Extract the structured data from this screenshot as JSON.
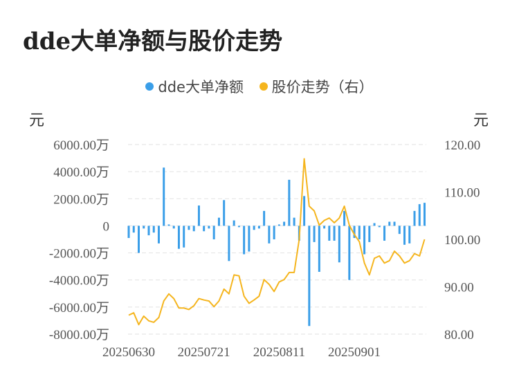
{
  "title": "dde大单净额与股价走势",
  "legend": [
    {
      "name": "dde大单净额",
      "color": "#3a9ee8"
    },
    {
      "name": "股价走势（右）",
      "color": "#f5b51e"
    }
  ],
  "y_left_unit": "元",
  "y_right_unit": "元",
  "chart_data": {
    "type": "bar+line",
    "title": "dde大单净额与股价走势",
    "x_tick_labels": [
      "20250630",
      "20250721",
      "20250811",
      "20250901"
    ],
    "y_left_tick_labels": [
      "6000.00万",
      "4000.00万",
      "2000.00万",
      "0",
      "-2000.00万",
      "-4000.00万",
      "-6000.00万",
      "-8000.00万"
    ],
    "y_right_tick_labels": [
      "120.00",
      "110.00",
      "100.00",
      "90.00",
      "80.00"
    ],
    "y_left_range": [
      -8000,
      6000
    ],
    "y_right_range": [
      80,
      120
    ],
    "grid": true,
    "legend_position": "top",
    "series": [
      {
        "name": "dde大单净额",
        "type": "bar",
        "axis": "left",
        "unit": "万",
        "values": [
          -900,
          -500,
          -2000,
          -200,
          -700,
          -500,
          -1300,
          4300,
          100,
          -200,
          -1700,
          -1600,
          -300,
          -400,
          1500,
          -400,
          -200,
          -1000,
          600,
          1900,
          -2600,
          400,
          -100,
          -2100,
          -1900,
          -300,
          -200,
          1100,
          -1300,
          -1000,
          100,
          300,
          3400,
          600,
          -1100,
          2200,
          -7400,
          -1200,
          -3400,
          -200,
          -1100,
          -1100,
          -2700,
          1100,
          -4000,
          -900,
          -1000,
          -2100,
          -1200,
          200,
          -100,
          -1100,
          300,
          300,
          -600,
          -1400,
          -1300,
          1100,
          1600,
          1700
        ]
      },
      {
        "name": "股价走势（右）",
        "type": "line",
        "axis": "right",
        "values": [
          84.0,
          84.5,
          82.0,
          83.8,
          82.8,
          82.5,
          83.5,
          87.0,
          88.5,
          87.5,
          85.5,
          85.5,
          85.2,
          86.0,
          87.5,
          87.2,
          87.0,
          85.8,
          87.0,
          89.5,
          88.5,
          92.5,
          92.3,
          88.0,
          86.5,
          87.2,
          88.0,
          91.5,
          90.5,
          89.0,
          91.0,
          91.5,
          93.0,
          93.0,
          100.0,
          117.0,
          107.0,
          106.0,
          103.0,
          104.0,
          104.5,
          103.5,
          104.5,
          107.0,
          103.0,
          101.0,
          99.5,
          95.0,
          92.5,
          96.0,
          96.5,
          95.0,
          95.5,
          97.5,
          96.5,
          95.0,
          95.5,
          97.0,
          96.5,
          100.0
        ]
      }
    ]
  }
}
